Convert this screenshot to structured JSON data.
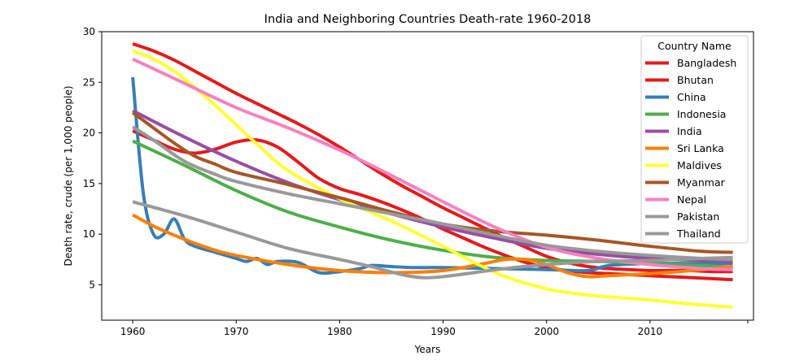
{
  "chart_data": {
    "type": "line",
    "title": "India and Neighboring Countries Death-rate 1960-2018",
    "xlabel": "Years",
    "ylabel": "Death rate, crude (per 1,000 people)",
    "xlim": [
      1957,
      2020
    ],
    "ylim": [
      1.5,
      30
    ],
    "x_ticks": [
      1960,
      1970,
      1980,
      1990,
      2000,
      2010
    ],
    "y_ticks": [
      5,
      10,
      15,
      20,
      25,
      30
    ],
    "grid": false,
    "legend": {
      "title": "Country Name",
      "position": "top-right"
    },
    "series": [
      {
        "name": "Bangladesh",
        "color": "#e41a1c",
        "x": [
          1960,
          1962,
          1964,
          1966,
          1968,
          1970,
          1972,
          1974,
          1976,
          1978,
          1980,
          1982,
          1984,
          1986,
          1988,
          1990,
          1992,
          1994,
          1996,
          1998,
          2000,
          2002,
          2004,
          2006,
          2008,
          2010,
          2012,
          2014,
          2016,
          2018
        ],
        "y": [
          20.2,
          19.3,
          18.4,
          18.0,
          18.4,
          19.1,
          19.3,
          18.6,
          17.1,
          15.5,
          14.5,
          13.9,
          13.2,
          12.4,
          11.5,
          10.5,
          9.6,
          8.7,
          7.9,
          7.2,
          6.7,
          6.4,
          6.2,
          6.1,
          6.0,
          5.9,
          5.8,
          5.7,
          5.6,
          5.5
        ]
      },
      {
        "name": "Bhutan",
        "color": "#e41a1c",
        "x": [
          1960,
          1962,
          1964,
          1966,
          1968,
          1970,
          1972,
          1974,
          1976,
          1978,
          1980,
          1982,
          1984,
          1986,
          1988,
          1990,
          1992,
          1994,
          1996,
          1998,
          2000,
          2002,
          2004,
          2006,
          2008,
          2010,
          2012,
          2014,
          2016,
          2018
        ],
        "y": [
          28.8,
          28.1,
          27.2,
          26.1,
          25.0,
          23.9,
          22.9,
          21.9,
          20.9,
          19.8,
          18.6,
          17.3,
          16.0,
          14.8,
          13.7,
          12.6,
          11.6,
          10.6,
          9.6,
          8.7,
          7.8,
          7.2,
          6.8,
          6.6,
          6.5,
          6.4,
          6.4,
          6.4,
          6.3,
          6.3
        ]
      },
      {
        "name": "China",
        "color": "#377eb8",
        "x": [
          1960,
          1961,
          1962,
          1963,
          1964,
          1965,
          1966,
          1968,
          1970,
          1971,
          1972,
          1973,
          1974,
          1976,
          1978,
          1980,
          1982,
          1983,
          1985,
          1987,
          1990,
          1995,
          2000,
          2004,
          2006,
          2010,
          2014,
          2018
        ],
        "y": [
          25.5,
          14.2,
          10.0,
          10.0,
          11.5,
          9.5,
          8.8,
          8.2,
          7.6,
          7.3,
          7.6,
          7.0,
          7.3,
          7.2,
          6.2,
          6.3,
          6.6,
          6.9,
          6.8,
          6.7,
          6.7,
          6.6,
          6.5,
          6.4,
          6.9,
          7.1,
          7.1,
          7.1
        ]
      },
      {
        "name": "Indonesia",
        "color": "#4daf4a",
        "x": [
          1960,
          1965,
          1970,
          1975,
          1980,
          1985,
          1990,
          1995,
          2000,
          2005,
          2010,
          2015,
          2018
        ],
        "y": [
          19.2,
          16.8,
          14.3,
          12.2,
          10.7,
          9.4,
          8.4,
          7.7,
          7.4,
          7.3,
          7.1,
          6.9,
          6.7
        ]
      },
      {
        "name": "India",
        "color": "#984ea3",
        "x": [
          1960,
          1965,
          1970,
          1975,
          1980,
          1985,
          1990,
          1995,
          2000,
          2005,
          2010,
          2015,
          2018
        ],
        "y": [
          22.2,
          19.6,
          17.2,
          15.1,
          13.4,
          12.0,
          10.7,
          9.6,
          8.6,
          8.0,
          7.6,
          7.4,
          7.3
        ]
      },
      {
        "name": "Sri Lanka",
        "color": "#ff7f00",
        "x": [
          1960,
          1962,
          1964,
          1966,
          1968,
          1970,
          1975,
          1980,
          1985,
          1990,
          1994,
          1996,
          1998,
          2000,
          2002,
          2004,
          2006,
          2010,
          2014,
          2018
        ],
        "y": [
          11.9,
          10.8,
          9.9,
          9.1,
          8.4,
          7.9,
          7.0,
          6.4,
          6.2,
          6.4,
          7.1,
          7.5,
          7.5,
          7.0,
          6.2,
          5.8,
          5.9,
          6.1,
          6.4,
          6.8
        ]
      },
      {
        "name": "Maldives",
        "color": "#ffff33",
        "x": [
          1960,
          1962,
          1964,
          1966,
          1968,
          1970,
          1972,
          1975,
          1980,
          1985,
          1990,
          1993,
          1996,
          2000,
          2003,
          2006,
          2010,
          2014,
          2018
        ],
        "y": [
          28.1,
          27.3,
          26.1,
          24.5,
          22.7,
          20.8,
          18.9,
          16.3,
          13.5,
          11.3,
          8.8,
          7.2,
          5.8,
          4.6,
          4.1,
          3.8,
          3.5,
          3.1,
          2.8
        ]
      },
      {
        "name": "Myanmar",
        "color": "#a65628",
        "x": [
          1960,
          1962,
          1964,
          1966,
          1968,
          1970,
          1975,
          1980,
          1985,
          1990,
          1995,
          2000,
          2005,
          2010,
          2015,
          2018
        ],
        "y": [
          22.0,
          20.5,
          19.0,
          17.7,
          16.9,
          16.1,
          14.9,
          13.6,
          12.2,
          11.0,
          10.3,
          9.9,
          9.4,
          8.8,
          8.3,
          8.2
        ]
      },
      {
        "name": "Nepal",
        "color": "#f781bf",
        "x": [
          1960,
          1965,
          1970,
          1975,
          1980,
          1985,
          1990,
          1995,
          2000,
          2005,
          2010,
          2015,
          2018
        ],
        "y": [
          27.3,
          24.9,
          22.5,
          20.5,
          18.3,
          15.8,
          13.2,
          10.7,
          8.7,
          7.6,
          7.0,
          6.6,
          6.5
        ]
      },
      {
        "name": "Pakistan",
        "color": "#999999",
        "x": [
          1960,
          1962,
          1965,
          1968,
          1970,
          1975,
          1980,
          1985,
          1990,
          1995,
          2000,
          2005,
          2010,
          2015,
          2018
        ],
        "y": [
          20.6,
          19.3,
          17.2,
          15.9,
          15.2,
          14.0,
          13.0,
          12.0,
          11.0,
          9.9,
          8.9,
          8.3,
          7.9,
          7.6,
          7.5
        ]
      },
      {
        "name": "Thailand",
        "color": "#999999",
        "x": [
          1960,
          1965,
          1970,
          1975,
          1980,
          1983,
          1986,
          1988,
          1990,
          1993,
          1996,
          2000,
          2005,
          2010,
          2015,
          2018
        ],
        "y": [
          13.2,
          11.8,
          10.2,
          8.6,
          7.5,
          6.8,
          6.0,
          5.7,
          5.8,
          6.2,
          6.6,
          7.0,
          7.3,
          7.4,
          7.6,
          7.7
        ]
      }
    ]
  }
}
